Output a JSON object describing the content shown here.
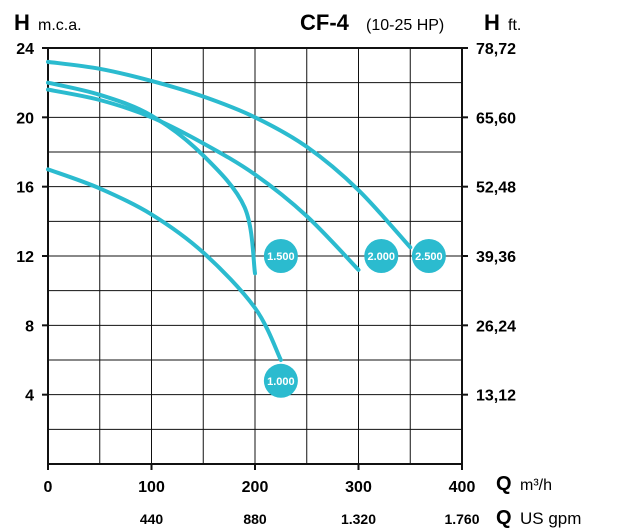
{
  "header": {
    "left_symbol": "H",
    "left_unit": "m.c.a.",
    "model": "CF-4",
    "power": "(10-25 HP)",
    "right_symbol": "H",
    "right_unit": "ft."
  },
  "footer": {
    "q_symbol": "Q",
    "q_unit_m3h": "m³/h",
    "q_unit_usgpm": "US gpm"
  },
  "colors": {
    "curve": "#2bbbcf",
    "grid": "#111111",
    "axis": "#111111",
    "badge_text": "#ffffff"
  },
  "chart_data": {
    "type": "line",
    "title": "CF-4 (10-25 HP)",
    "xlabel": "Q m³/h",
    "ylabel": "H m.c.a.",
    "xlim": [
      0,
      400
    ],
    "ylim": [
      0,
      24
    ],
    "grid": true,
    "x_ticks": [
      0,
      100,
      200,
      300,
      400
    ],
    "x_tick_labels": [
      "0",
      "100",
      "200",
      "300",
      "400"
    ],
    "x_grid_step": 50,
    "y_ticks": [
      4,
      8,
      12,
      16,
      20,
      24
    ],
    "y_tick_labels": [
      "4",
      "8",
      "12",
      "16",
      "20",
      "24"
    ],
    "y_grid_step": 2,
    "secondary_x": {
      "label": "Q US gpm",
      "ticks": [
        100,
        200,
        300,
        400
      ],
      "tick_labels": [
        "440",
        "880",
        "1.320",
        "1.760"
      ]
    },
    "secondary_y": {
      "label": "H ft.",
      "ticks": [
        4,
        8,
        12,
        16,
        20,
        24
      ],
      "tick_labels": [
        "13,12",
        "26,24",
        "39,36",
        "52,48",
        "65,60",
        "78,72"
      ]
    },
    "series": [
      {
        "name": "1.000",
        "x": [
          0,
          50,
          100,
          150,
          200,
          225
        ],
        "y": [
          17,
          15.9,
          14.4,
          12.2,
          9.0,
          6.0
        ],
        "label_pos": [
          225,
          4.8
        ]
      },
      {
        "name": "1.500",
        "x": [
          0,
          50,
          100,
          150,
          190,
          200
        ],
        "y": [
          22.0,
          21.3,
          20.1,
          17.8,
          14.8,
          11.0
        ],
        "label_pos": [
          225,
          12.0
        ]
      },
      {
        "name": "2.000",
        "x": [
          0,
          50,
          100,
          150,
          200,
          250,
          300
        ],
        "y": [
          21.6,
          21.0,
          20.0,
          18.5,
          16.7,
          14.3,
          11.2
        ],
        "label_pos": [
          322,
          12.0
        ]
      },
      {
        "name": "2.500",
        "x": [
          0,
          50,
          100,
          150,
          200,
          250,
          300,
          350
        ],
        "y": [
          23.2,
          22.8,
          22.1,
          21.2,
          20.0,
          18.3,
          15.8,
          12.5
        ],
        "label_pos": [
          368,
          12.0
        ]
      }
    ]
  }
}
